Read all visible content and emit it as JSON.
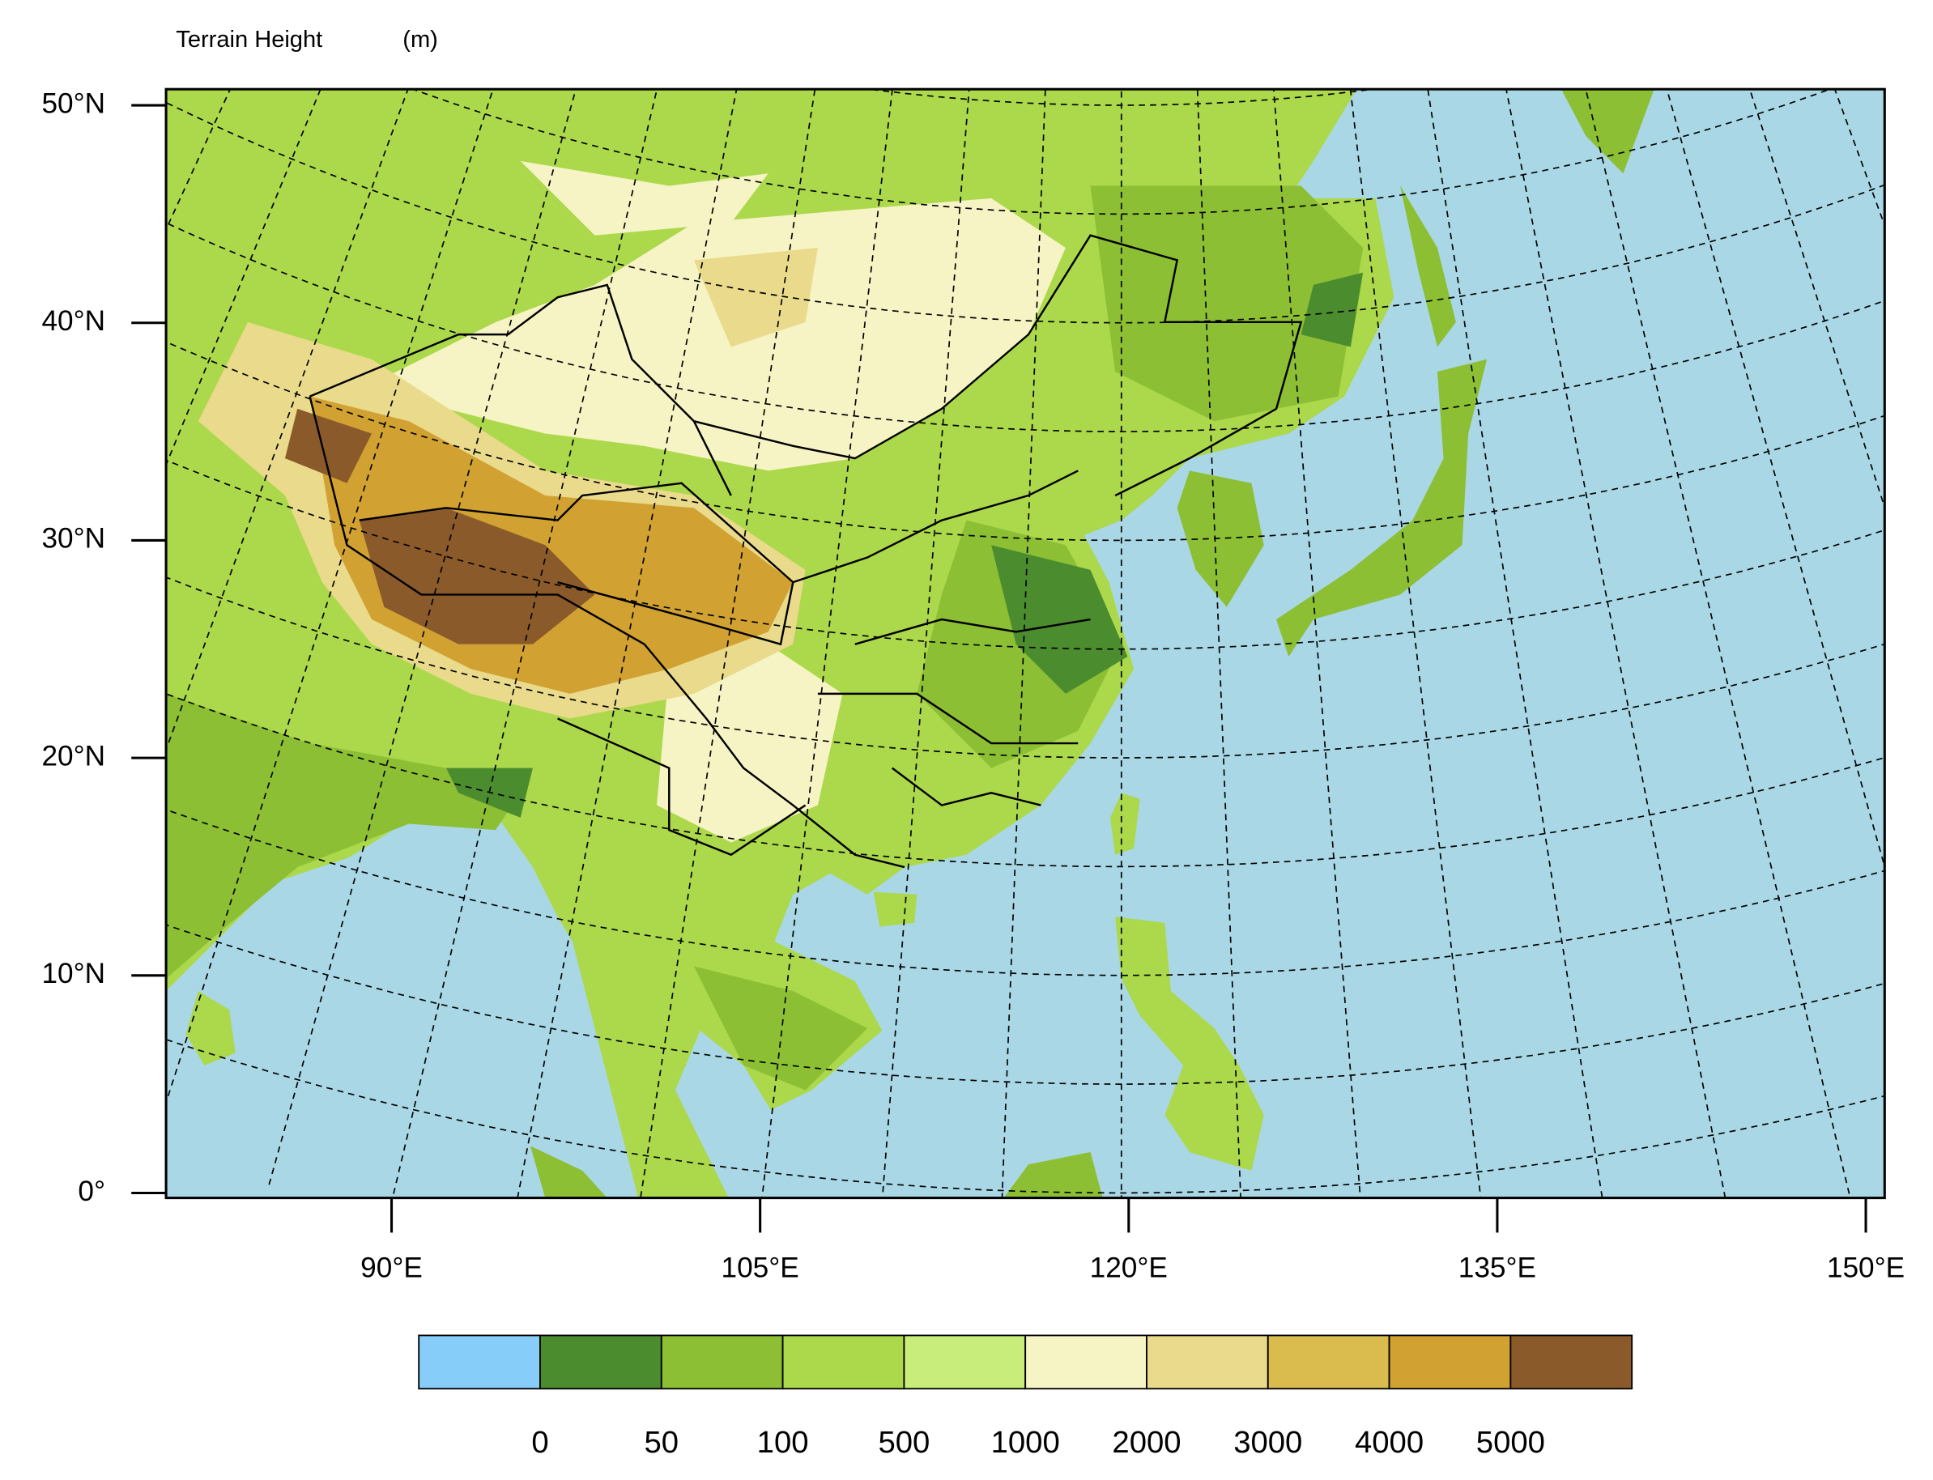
{
  "title": "Terrain Height",
  "units": "(m)",
  "map": {
    "lat_ticks": [
      {
        "value": 0,
        "label": "0°"
      },
      {
        "value": 10,
        "label": "10°N"
      },
      {
        "value": 20,
        "label": "20°N"
      },
      {
        "value": 30,
        "label": "30°N"
      },
      {
        "value": 40,
        "label": "40°N"
      },
      {
        "value": 50,
        "label": "50°N"
      }
    ],
    "lon_ticks": [
      {
        "value": 90,
        "label": "90°E"
      },
      {
        "value": 105,
        "label": "105°E"
      },
      {
        "value": 120,
        "label": "120°E"
      },
      {
        "value": 135,
        "label": "135°E"
      },
      {
        "value": 150,
        "label": "150°E"
      }
    ]
  },
  "colorbar": {
    "levels": [
      0,
      50,
      100,
      500,
      1000,
      2000,
      3000,
      4000,
      5000
    ],
    "colors": [
      "#87cdfa",
      "#4b8c2e",
      "#8cbf33",
      "#acd84b",
      "#c8ed7a",
      "#f6f3c4",
      "#e9da8c",
      "#d9bb4e",
      "#d1a232",
      "#8b5a2b"
    ]
  }
}
